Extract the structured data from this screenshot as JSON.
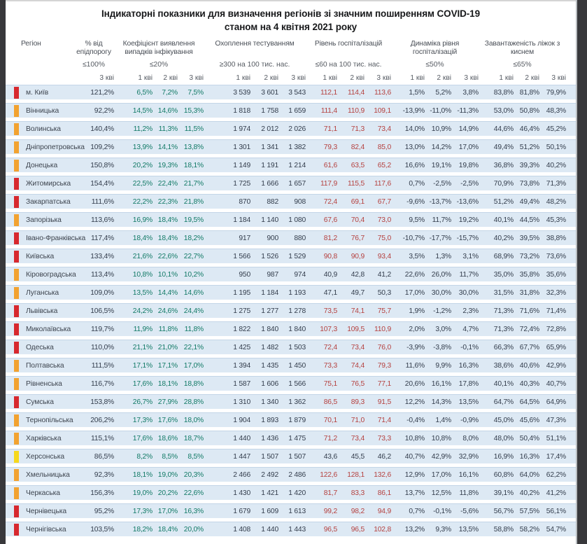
{
  "title": {
    "line1": "Індикаторні показники для визначення регіонів зі значним поширенням COVID-19",
    "line2": "станом на 4 квітня 2021 року"
  },
  "table": {
    "header": {
      "region_label": "Регіон",
      "groups": [
        {
          "key": "epid",
          "label": "% від епідпорогу",
          "threshold": "≤100%",
          "periods": [
            "3 кві"
          ]
        },
        {
          "key": "coef",
          "label": "Коефіцієнт виявлення випадків інфікування",
          "threshold": "≤20%",
          "periods": [
            "1 кві",
            "2 кві",
            "3 кві"
          ]
        },
        {
          "key": "test",
          "label": "Охоплення тестуванням",
          "threshold": "≥300 на 100 тис. нас.",
          "periods": [
            "1 кві",
            "2 кві",
            "3 кві"
          ]
        },
        {
          "key": "hosp",
          "label": "Рівень госпіталізацій",
          "threshold": "≤60 на 100 тис. нас.",
          "periods": [
            "1 кві",
            "2 кві",
            "3 кві"
          ]
        },
        {
          "key": "dyn",
          "label": "Динаміка рівня госпіталізацій",
          "threshold": "≤50%",
          "periods": [
            "1 кві",
            "2 кві",
            "3 кві"
          ]
        },
        {
          "key": "beds",
          "label": "Завантаженість ліжок з киснем",
          "threshold": "≤65%",
          "periods": [
            "1 кві",
            "2 кві",
            "3 кві"
          ]
        }
      ]
    },
    "marker_colors": {
      "red": "#d7282e",
      "orange": "#f2a230",
      "yellow": "#f6d81d"
    },
    "value_colors": {
      "default": "#333d4c",
      "coefficient_green": "#127a66",
      "hospitalization_red": "#b5413f"
    },
    "rows": [
      {
        "name": "м. Київ",
        "marker": "red",
        "epid": "121,2%",
        "coef": [
          "6,5%",
          "7,2%",
          "7,5%"
        ],
        "test": [
          "3 539",
          "3 601",
          "3 543"
        ],
        "hosp": [
          "112,1",
          "114,4",
          "113,6"
        ],
        "hosp_alert": true,
        "dyn": [
          "1,5%",
          "5,2%",
          "3,8%"
        ],
        "beds": [
          "83,8%",
          "81,8%",
          "79,9%"
        ]
      },
      {
        "name": "Вінницька",
        "marker": "orange",
        "epid": "92,2%",
        "coef": [
          "14,5%",
          "14,6%",
          "15,3%"
        ],
        "test": [
          "1 818",
          "1 758",
          "1 659"
        ],
        "hosp": [
          "111,4",
          "110,9",
          "109,1"
        ],
        "hosp_alert": true,
        "dyn": [
          "-13,9%",
          "-11,0%",
          "-11,3%"
        ],
        "beds": [
          "53,0%",
          "50,8%",
          "48,3%"
        ]
      },
      {
        "name": "Волинська",
        "marker": "orange",
        "epid": "140,4%",
        "coef": [
          "11,2%",
          "11,3%",
          "11,5%"
        ],
        "test": [
          "1 974",
          "2 012",
          "2 026"
        ],
        "hosp": [
          "71,1",
          "71,3",
          "73,4"
        ],
        "hosp_alert": true,
        "dyn": [
          "14,0%",
          "10,9%",
          "14,9%"
        ],
        "beds": [
          "44,6%",
          "46,4%",
          "45,2%"
        ]
      },
      {
        "name": "Дніпропетровська",
        "marker": "orange",
        "epid": "109,2%",
        "coef": [
          "13,9%",
          "14,1%",
          "13,8%"
        ],
        "test": [
          "1 301",
          "1 341",
          "1 382"
        ],
        "hosp": [
          "79,3",
          "82,4",
          "85,0"
        ],
        "hosp_alert": true,
        "dyn": [
          "13,0%",
          "14,2%",
          "17,0%"
        ],
        "beds": [
          "49,4%",
          "51,2%",
          "50,1%"
        ]
      },
      {
        "name": "Донецька",
        "marker": "orange",
        "epid": "150,8%",
        "coef": [
          "20,2%",
          "19,3%",
          "18,1%"
        ],
        "test": [
          "1 149",
          "1 191",
          "1 214"
        ],
        "hosp": [
          "61,6",
          "63,5",
          "65,2"
        ],
        "hosp_alert": true,
        "dyn": [
          "16,6%",
          "19,1%",
          "19,8%"
        ],
        "beds": [
          "36,8%",
          "39,3%",
          "40,2%"
        ]
      },
      {
        "name": "Житомирська",
        "marker": "red",
        "epid": "154,4%",
        "coef": [
          "22,5%",
          "22,4%",
          "21,7%"
        ],
        "test": [
          "1 725",
          "1 666",
          "1 657"
        ],
        "hosp": [
          "117,9",
          "115,5",
          "117,6"
        ],
        "hosp_alert": true,
        "dyn": [
          "0,7%",
          "-2,5%",
          "-2,5%"
        ],
        "beds": [
          "70,9%",
          "73,8%",
          "71,3%"
        ]
      },
      {
        "name": "Закарпатська",
        "marker": "red",
        "epid": "111,6%",
        "coef": [
          "22,2%",
          "22,3%",
          "21,8%"
        ],
        "test": [
          "870",
          "882",
          "908"
        ],
        "hosp": [
          "72,4",
          "69,1",
          "67,7"
        ],
        "hosp_alert": true,
        "dyn": [
          "-9,6%",
          "-13,7%",
          "-13,6%"
        ],
        "beds": [
          "51,2%",
          "49,4%",
          "48,2%"
        ]
      },
      {
        "name": "Запорізька",
        "marker": "orange",
        "epid": "113,6%",
        "coef": [
          "16,9%",
          "18,4%",
          "19,5%"
        ],
        "test": [
          "1 184",
          "1 140",
          "1 080"
        ],
        "hosp": [
          "67,6",
          "70,4",
          "73,0"
        ],
        "hosp_alert": true,
        "dyn": [
          "9,5%",
          "11,7%",
          "19,2%"
        ],
        "beds": [
          "40,1%",
          "44,5%",
          "45,3%"
        ]
      },
      {
        "name": "Івано-Франківська",
        "marker": "red",
        "epid": "117,4%",
        "coef": [
          "18,4%",
          "18,4%",
          "18,2%"
        ],
        "test": [
          "917",
          "900",
          "880"
        ],
        "hosp": [
          "81,2",
          "76,7",
          "75,0"
        ],
        "hosp_alert": true,
        "dyn": [
          "-10,7%",
          "-17,7%",
          "-15,7%"
        ],
        "beds": [
          "40,2%",
          "39,5%",
          "38,8%"
        ]
      },
      {
        "name": "Київська",
        "marker": "red",
        "epid": "133,4%",
        "coef": [
          "21,6%",
          "22,6%",
          "22,7%"
        ],
        "test": [
          "1 566",
          "1 526",
          "1 529"
        ],
        "hosp": [
          "90,8",
          "90,9",
          "93,4"
        ],
        "hosp_alert": true,
        "dyn": [
          "3,5%",
          "1,3%",
          "3,1%"
        ],
        "beds": [
          "68,9%",
          "73,2%",
          "73,6%"
        ]
      },
      {
        "name": "Кіровоградська",
        "marker": "orange",
        "epid": "113,4%",
        "coef": [
          "10,8%",
          "10,1%",
          "10,2%"
        ],
        "test": [
          "950",
          "987",
          "974"
        ],
        "hosp": [
          "40,9",
          "42,8",
          "41,2"
        ],
        "hosp_alert": false,
        "dyn": [
          "22,6%",
          "26,0%",
          "11,7%"
        ],
        "beds": [
          "35,0%",
          "35,8%",
          "35,6%"
        ]
      },
      {
        "name": "Луганська",
        "marker": "orange",
        "epid": "109,0%",
        "coef": [
          "13,5%",
          "14,4%",
          "14,6%"
        ],
        "test": [
          "1 195",
          "1 184",
          "1 193"
        ],
        "hosp": [
          "47,1",
          "49,7",
          "50,3"
        ],
        "hosp_alert": false,
        "dyn": [
          "17,0%",
          "30,0%",
          "30,0%"
        ],
        "beds": [
          "31,5%",
          "31,8%",
          "32,3%"
        ]
      },
      {
        "name": "Львівська",
        "marker": "red",
        "epid": "106,5%",
        "coef": [
          "24,2%",
          "24,6%",
          "24,4%"
        ],
        "test": [
          "1 275",
          "1 277",
          "1 278"
        ],
        "hosp": [
          "73,5",
          "74,1",
          "75,7"
        ],
        "hosp_alert": true,
        "dyn": [
          "1,9%",
          "-1,2%",
          "2,3%"
        ],
        "beds": [
          "71,3%",
          "71,6%",
          "71,4%"
        ]
      },
      {
        "name": "Миколаївська",
        "marker": "red",
        "epid": "119,7%",
        "coef": [
          "11,9%",
          "11,8%",
          "11,8%"
        ],
        "test": [
          "1 822",
          "1 840",
          "1 840"
        ],
        "hosp": [
          "107,3",
          "109,5",
          "110,9"
        ],
        "hosp_alert": true,
        "dyn": [
          "2,0%",
          "3,0%",
          "4,7%"
        ],
        "beds": [
          "71,3%",
          "72,4%",
          "72,8%"
        ]
      },
      {
        "name": "Одеська",
        "marker": "red",
        "epid": "110,0%",
        "coef": [
          "21,1%",
          "21,0%",
          "22,1%"
        ],
        "test": [
          "1 425",
          "1 482",
          "1 503"
        ],
        "hosp": [
          "72,4",
          "73,4",
          "76,0"
        ],
        "hosp_alert": true,
        "dyn": [
          "-3,9%",
          "-3,8%",
          "-0,1%"
        ],
        "beds": [
          "66,3%",
          "67,7%",
          "65,9%"
        ]
      },
      {
        "name": "Полтавська",
        "marker": "orange",
        "epid": "111,5%",
        "coef": [
          "17,1%",
          "17,1%",
          "17,0%"
        ],
        "test": [
          "1 394",
          "1 435",
          "1 450"
        ],
        "hosp": [
          "73,3",
          "74,4",
          "79,3"
        ],
        "hosp_alert": true,
        "dyn": [
          "11,6%",
          "9,9%",
          "16,3%"
        ],
        "beds": [
          "38,6%",
          "40,6%",
          "42,9%"
        ]
      },
      {
        "name": "Рівненська",
        "marker": "orange",
        "epid": "116,7%",
        "coef": [
          "17,6%",
          "18,1%",
          "18,8%"
        ],
        "test": [
          "1 587",
          "1 606",
          "1 566"
        ],
        "hosp": [
          "75,1",
          "76,5",
          "77,1"
        ],
        "hosp_alert": true,
        "dyn": [
          "20,6%",
          "16,1%",
          "17,8%"
        ],
        "beds": [
          "40,1%",
          "40,3%",
          "40,7%"
        ]
      },
      {
        "name": "Сумська",
        "marker": "red",
        "epid": "153,8%",
        "coef": [
          "26,7%",
          "27,9%",
          "28,8%"
        ],
        "test": [
          "1 310",
          "1 340",
          "1 362"
        ],
        "hosp": [
          "86,5",
          "89,3",
          "91,5"
        ],
        "hosp_alert": true,
        "dyn": [
          "12,2%",
          "14,3%",
          "13,5%"
        ],
        "beds": [
          "64,7%",
          "64,5%",
          "64,9%"
        ]
      },
      {
        "name": "Тернопільська",
        "marker": "orange",
        "epid": "206,2%",
        "coef": [
          "17,3%",
          "17,6%",
          "18,0%"
        ],
        "test": [
          "1 904",
          "1 893",
          "1 879"
        ],
        "hosp": [
          "70,1",
          "71,0",
          "71,4"
        ],
        "hosp_alert": true,
        "dyn": [
          "-0,4%",
          "1,4%",
          "-0,9%"
        ],
        "beds": [
          "45,0%",
          "45,6%",
          "47,3%"
        ]
      },
      {
        "name": "Харківська",
        "marker": "orange",
        "epid": "115,1%",
        "coef": [
          "17,6%",
          "18,6%",
          "18,7%"
        ],
        "test": [
          "1 440",
          "1 436",
          "1 475"
        ],
        "hosp": [
          "71,2",
          "73,4",
          "73,3"
        ],
        "hosp_alert": true,
        "dyn": [
          "10,8%",
          "10,8%",
          "8,0%"
        ],
        "beds": [
          "48,0%",
          "50,4%",
          "51,1%"
        ]
      },
      {
        "name": "Херсонська",
        "marker": "yellow",
        "epid": "86,5%",
        "coef": [
          "8,2%",
          "8,5%",
          "8,5%"
        ],
        "test": [
          "1 447",
          "1 507",
          "1 507"
        ],
        "hosp": [
          "43,6",
          "45,5",
          "46,2"
        ],
        "hosp_alert": false,
        "dyn": [
          "40,7%",
          "42,9%",
          "32,9%"
        ],
        "beds": [
          "16,9%",
          "16,3%",
          "17,4%"
        ]
      },
      {
        "name": "Хмельницька",
        "marker": "orange",
        "epid": "92,3%",
        "coef": [
          "18,1%",
          "19,0%",
          "20,3%"
        ],
        "test": [
          "2 466",
          "2 492",
          "2 486"
        ],
        "hosp": [
          "122,6",
          "128,1",
          "132,6"
        ],
        "hosp_alert": true,
        "dyn": [
          "12,9%",
          "17,0%",
          "16,1%"
        ],
        "beds": [
          "60,8%",
          "64,0%",
          "62,2%"
        ]
      },
      {
        "name": "Черкаська",
        "marker": "orange",
        "epid": "156,3%",
        "coef": [
          "19,0%",
          "20,2%",
          "22,6%"
        ],
        "test": [
          "1 430",
          "1 421",
          "1 420"
        ],
        "hosp": [
          "81,7",
          "83,3",
          "86,1"
        ],
        "hosp_alert": true,
        "dyn": [
          "13,7%",
          "12,5%",
          "11,8%"
        ],
        "beds": [
          "39,1%",
          "40,2%",
          "41,2%"
        ]
      },
      {
        "name": "Чернівецька",
        "marker": "red",
        "epid": "95,2%",
        "coef": [
          "17,3%",
          "17,0%",
          "16,3%"
        ],
        "test": [
          "1 679",
          "1 609",
          "1 613"
        ],
        "hosp": [
          "99,2",
          "98,2",
          "94,9"
        ],
        "hosp_alert": true,
        "dyn": [
          "0,7%",
          "-0,1%",
          "-5,6%"
        ],
        "beds": [
          "56,7%",
          "57,5%",
          "56,1%"
        ]
      },
      {
        "name": "Чернігівська",
        "marker": "red",
        "epid": "103,5%",
        "coef": [
          "18,2%",
          "18,4%",
          "20,0%"
        ],
        "test": [
          "1 408",
          "1 440",
          "1 443"
        ],
        "hosp": [
          "96,5",
          "96,5",
          "102,8"
        ],
        "hosp_alert": true,
        "dyn": [
          "13,2%",
          "9,3%",
          "13,5%"
        ],
        "beds": [
          "58,8%",
          "58,2%",
          "54,7%"
        ]
      }
    ]
  }
}
